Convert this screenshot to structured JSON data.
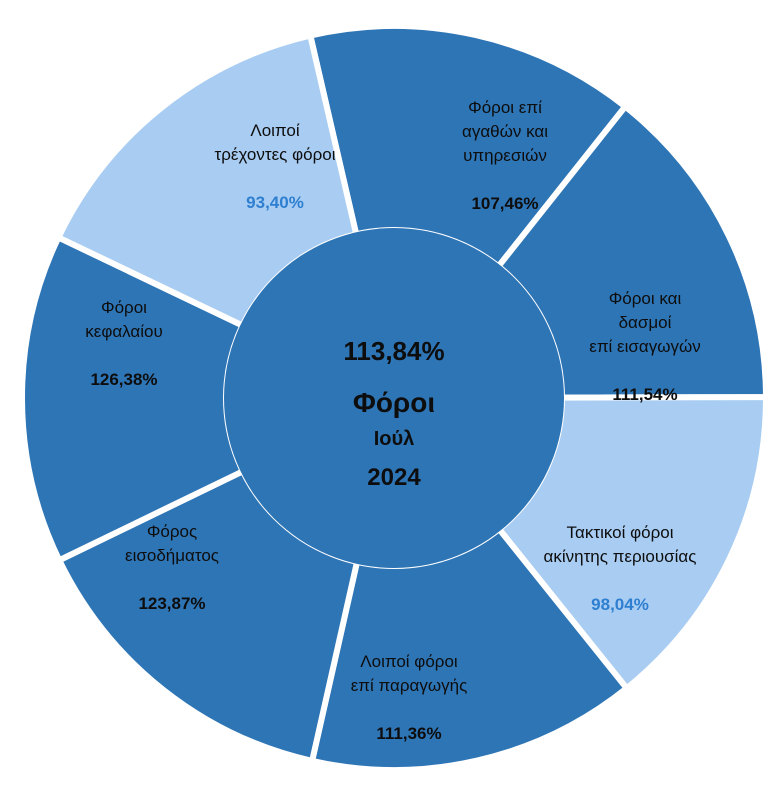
{
  "chart_data": {
    "type": "pie",
    "center": {
      "value": "113,84%",
      "title_lines": [
        "Φόροι",
        "Ιούλ",
        "2024"
      ]
    },
    "segments": [
      {
        "lines": [
          "Φόροι επί",
          "αγαθών και",
          "υπηρεσιών"
        ],
        "value": "107,46%",
        "fill": "#2e75b6",
        "value_color": "#0d0d0d"
      },
      {
        "lines": [
          "Φόροι και",
          "δασμοί",
          "επί εισαγωγών"
        ],
        "value": "111,54%",
        "fill": "#2e75b6",
        "value_color": "#0d0d0d"
      },
      {
        "lines": [
          "Τακτικοί φόροι",
          "ακίνητης περιουσίας"
        ],
        "value": "98,04%",
        "fill": "#a9cdf2",
        "value_color": "#2e7fd0"
      },
      {
        "lines": [
          "Λοιποί φόροι",
          "επί παραγωγής"
        ],
        "value": "111,36%",
        "fill": "#2e75b6",
        "value_color": "#0d0d0d"
      },
      {
        "lines": [
          "Φόρος",
          "εισοδήματος"
        ],
        "value": "123,87%",
        "fill": "#2e75b6",
        "value_color": "#0d0d0d"
      },
      {
        "lines": [
          "Φόροι",
          "κεφαλαίου"
        ],
        "value": "126,38%",
        "fill": "#2e75b6",
        "value_color": "#0d0d0d"
      },
      {
        "lines": [
          "Λοιποί",
          "τρέχοντες φόροι"
        ],
        "value": "93,40%",
        "fill": "#a9cdf2",
        "value_color": "#2e7fd0"
      }
    ],
    "center_fill": "#2e75b6",
    "separator_color": "#ffffff"
  }
}
